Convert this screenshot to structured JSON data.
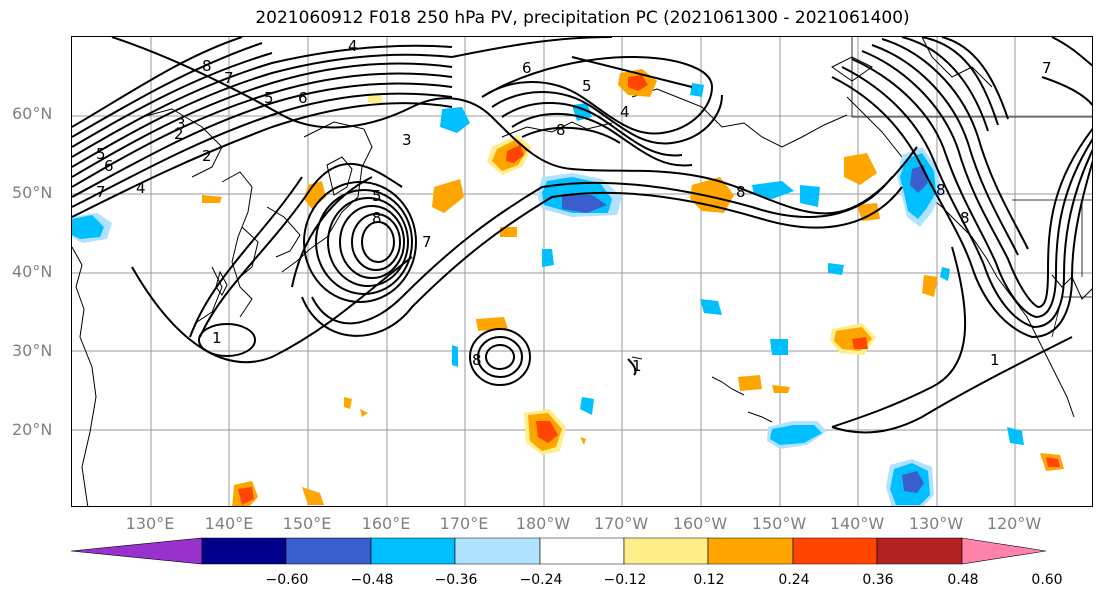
{
  "title": "2021060912 F018 250 hPa PV, precipitation PC (2021061300 - 2021061400)",
  "lat_labels": [
    "60°N",
    "50°N",
    "40°N",
    "30°N",
    "20°N"
  ],
  "lon_labels": [
    "130°E",
    "140°E",
    "150°E",
    "160°E",
    "170°E",
    "180°W",
    "170°W",
    "160°W",
    "150°W",
    "140°W",
    "130°W",
    "120°W"
  ],
  "colorbar": {
    "colors": [
      "#9932cc",
      "#00008b",
      "#3a5fcd",
      "#00bfff",
      "#b0e2ff",
      "#ffffff",
      "#ffee8a",
      "#ffa500",
      "#ff4500",
      "#b22222",
      "#ff82ab"
    ],
    "ticks": [
      "−0.60",
      "−0.48",
      "−0.36",
      "−0.24",
      "−0.12",
      "0.12",
      "0.24",
      "0.36",
      "0.48",
      "0.60"
    ]
  },
  "contour_labels": [
    "8",
    "7",
    "6",
    "5",
    "4",
    "3",
    "2",
    "5",
    "6",
    "7",
    "4",
    "2",
    "3",
    "8",
    "7",
    "6",
    "5",
    "4",
    "8",
    "5",
    "8",
    "1",
    "1",
    "8",
    "8",
    "8",
    "7",
    "1"
  ]
}
